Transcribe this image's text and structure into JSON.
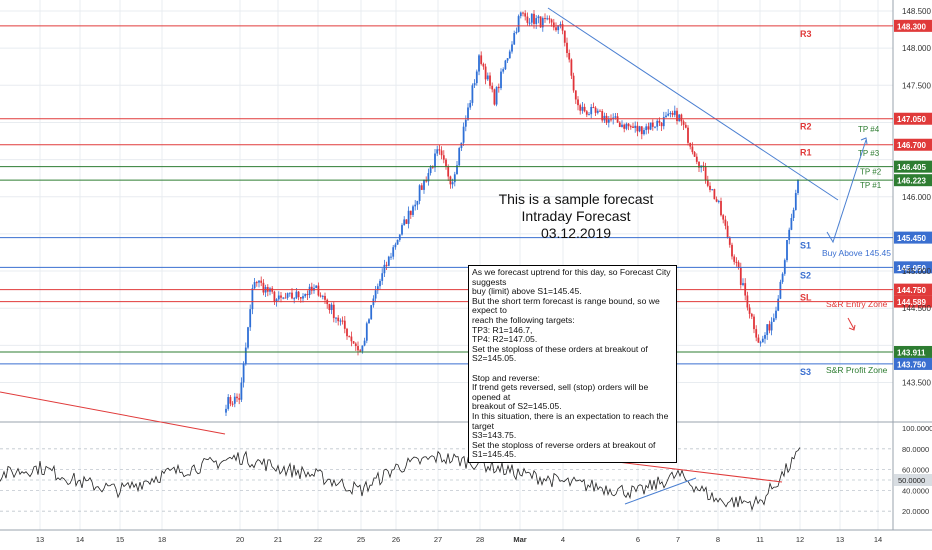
{
  "chart_data": [
    {
      "type": "candlestick",
      "title": "",
      "watermark_lines": [
        "This is a sample forecast",
        "Intraday Forecast",
        "03.12.2019"
      ],
      "y_axis": {
        "ticks": [
          "148.500",
          "148.000",
          "147.500",
          "146.000",
          "145.000",
          "144.500",
          "143.500"
        ],
        "ylim": [
          143.25,
          148.6
        ]
      },
      "x_axis": {
        "tick_labels": [
          "13",
          "14",
          "15",
          "18",
          "20",
          "21",
          "22",
          "25",
          "26",
          "27",
          "28",
          "Mar",
          "4",
          "6",
          "7",
          "8",
          "11",
          "12",
          "13",
          "14"
        ]
      },
      "levels": [
        {
          "id": "R3",
          "label": "R3",
          "price": 148.3,
          "price_label": "148.300",
          "color": "#e03a3a"
        },
        {
          "id": "R2",
          "label": "R2",
          "price": 147.05,
          "price_label": "147.050",
          "color": "#e03a3a"
        },
        {
          "id": "R1",
          "label": "R1",
          "price": 146.7,
          "price_label": "146.700",
          "color": "#e03a3a"
        },
        {
          "id": "TP2",
          "label": "TP #2",
          "price": 146.405,
          "price_label": "146.405",
          "color": "#2e7d32"
        },
        {
          "id": "TP1",
          "label": "TP #1",
          "price": 146.223,
          "price_label": "146.223",
          "color": "#2e7d32"
        },
        {
          "id": "S1",
          "label": "S1",
          "price": 145.45,
          "price_label": "145.450",
          "color": "#3a6fd0"
        },
        {
          "id": "S2",
          "label": "S2",
          "price": 145.05,
          "price_label": "145.050",
          "color": "#3a6fd0"
        },
        {
          "id": "SL",
          "label": "SL",
          "price": 144.75,
          "price_label": "144.750",
          "color": "#e03a3a"
        },
        {
          "id": "EZ",
          "label": "",
          "price": 144.589,
          "price_label": "144.589",
          "color": "#e03a3a"
        },
        {
          "id": "PZ",
          "label": "",
          "price": 143.911,
          "price_label": "143.911",
          "color": "#2e7d32"
        },
        {
          "id": "S3",
          "label": "S3",
          "price": 143.75,
          "price_label": "143.750",
          "color": "#3a6fd0"
        }
      ],
      "annotations": {
        "tp4": "TP #4",
        "tp3": "TP #3",
        "buy_above": "Buy Above 145.45",
        "entry_zone": "S&R Entry Zone",
        "profit_zone": "S&R Profit Zone"
      },
      "price_path": [
        {
          "x": "20",
          "y": 143.3
        },
        {
          "x": "20",
          "y": 144.9
        },
        {
          "x": "21",
          "y": 144.6
        },
        {
          "x": "22",
          "y": 144.75
        },
        {
          "x": "25",
          "y": 143.9
        },
        {
          "x": "25",
          "y": 144.7
        },
        {
          "x": "26",
          "y": 145.4
        },
        {
          "x": "27",
          "y": 146.6
        },
        {
          "x": "27",
          "y": 146.2
        },
        {
          "x": "28",
          "y": 147.9
        },
        {
          "x": "28",
          "y": 147.3
        },
        {
          "x": "Mar",
          "y": 148.45
        },
        {
          "x": "4",
          "y": 148.25
        },
        {
          "x": "4",
          "y": 147.2
        },
        {
          "x": "6",
          "y": 146.9
        },
        {
          "x": "7",
          "y": 147.1
        },
        {
          "x": "8",
          "y": 145.9
        },
        {
          "x": "11",
          "y": 144.0
        },
        {
          "x": "11",
          "y": 144.4
        },
        {
          "x": "12",
          "y": 146.3
        }
      ],
      "note_lines": [
        "As we forecast uptrend for this day, so Forecast City suggests",
        "buy (limit) above S1=145.45.",
        "But the short term forecast is range bound, so we expect to",
        "reach the following targets:",
        "TP3: R1=146.7,",
        "TP4: R2=147.05.",
        "Set the stoploss of these orders at breakout of S2=145.05.",
        "",
        "Stop and reverse:",
        "If trend gets reversed, sell (stop) orders will be opened at",
        "breakout of S2=145.05.",
        "In this situation, there is an expectation to reach the target",
        "S3=143.75.",
        "Set the stoploss of reverse orders at breakout of S1=145.45."
      ]
    },
    {
      "type": "line",
      "name": "oscillator",
      "y_axis": {
        "ticks": [
          "100.0000",
          "80.0000",
          "60.0000",
          "50.0000",
          "40.0000",
          "20.0000"
        ],
        "ylim": [
          0,
          100
        ],
        "current": "50.0000"
      },
      "values_path": [
        {
          "x": "13",
          "y": 62
        },
        {
          "x": "14",
          "y": 48
        },
        {
          "x": "15",
          "y": 40
        },
        {
          "x": "18",
          "y": 55
        },
        {
          "x": "20",
          "y": 72
        },
        {
          "x": "21",
          "y": 62
        },
        {
          "x": "22",
          "y": 54
        },
        {
          "x": "25",
          "y": 40
        },
        {
          "x": "26",
          "y": 62
        },
        {
          "x": "27",
          "y": 72
        },
        {
          "x": "28",
          "y": 66
        },
        {
          "x": "Mar",
          "y": 56
        },
        {
          "x": "4",
          "y": 48
        },
        {
          "x": "6",
          "y": 38
        },
        {
          "x": "7",
          "y": 55
        },
        {
          "x": "8",
          "y": 30
        },
        {
          "x": "11",
          "y": 28
        },
        {
          "x": "12",
          "y": 76
        }
      ]
    }
  ],
  "colors": {
    "bull": "#2f6fd6",
    "bear": "#e0343a",
    "grid": "#e8ecf0",
    "axis_text": "#333333",
    "trend": "#4a7fd1",
    "red": "#e03a3a",
    "green": "#2e7d32",
    "blue": "#3a6fd0"
  }
}
